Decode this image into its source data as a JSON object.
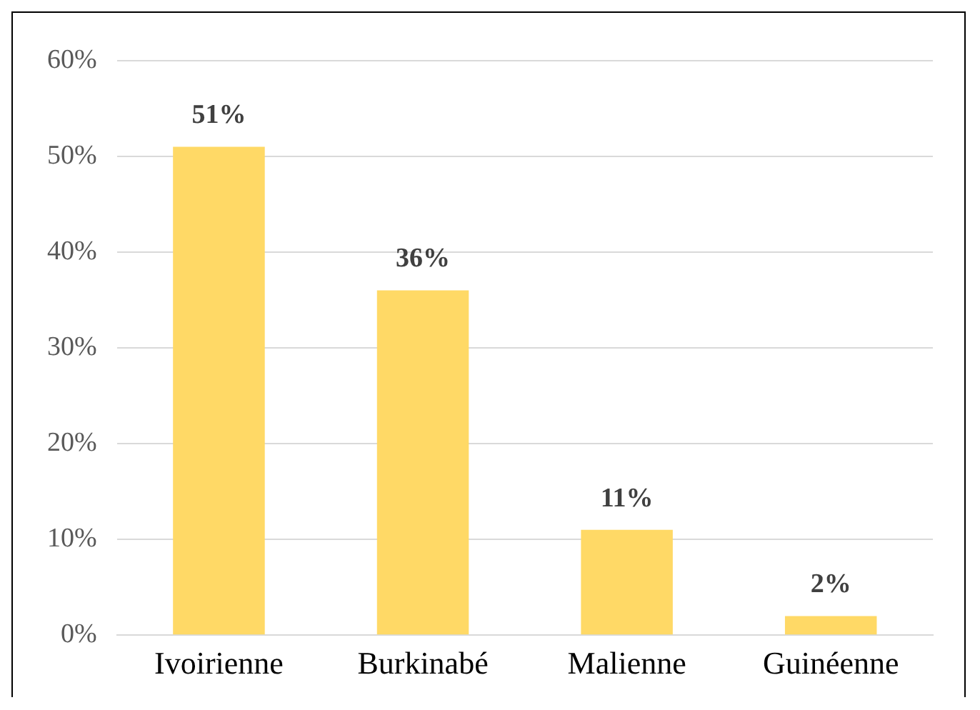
{
  "chart_data": {
    "type": "bar",
    "categories": [
      "Ivoirienne",
      "Burkinabé",
      "Malienne",
      "Guinéenne"
    ],
    "values": [
      51,
      36,
      11,
      2
    ],
    "value_labels": [
      "51%",
      "36%",
      "11%",
      "2%"
    ],
    "color": "#ffd966",
    "ylim": [
      0,
      60
    ],
    "yticks": [
      {
        "value": 0,
        "label": "0%"
      },
      {
        "value": 10,
        "label": "10%"
      },
      {
        "value": 20,
        "label": "20%"
      },
      {
        "value": 30,
        "label": "30%"
      },
      {
        "value": 40,
        "label": "40%"
      },
      {
        "value": 50,
        "label": "50%"
      },
      {
        "value": 60,
        "label": "60%"
      }
    ],
    "grid": "y",
    "legend": false
  }
}
